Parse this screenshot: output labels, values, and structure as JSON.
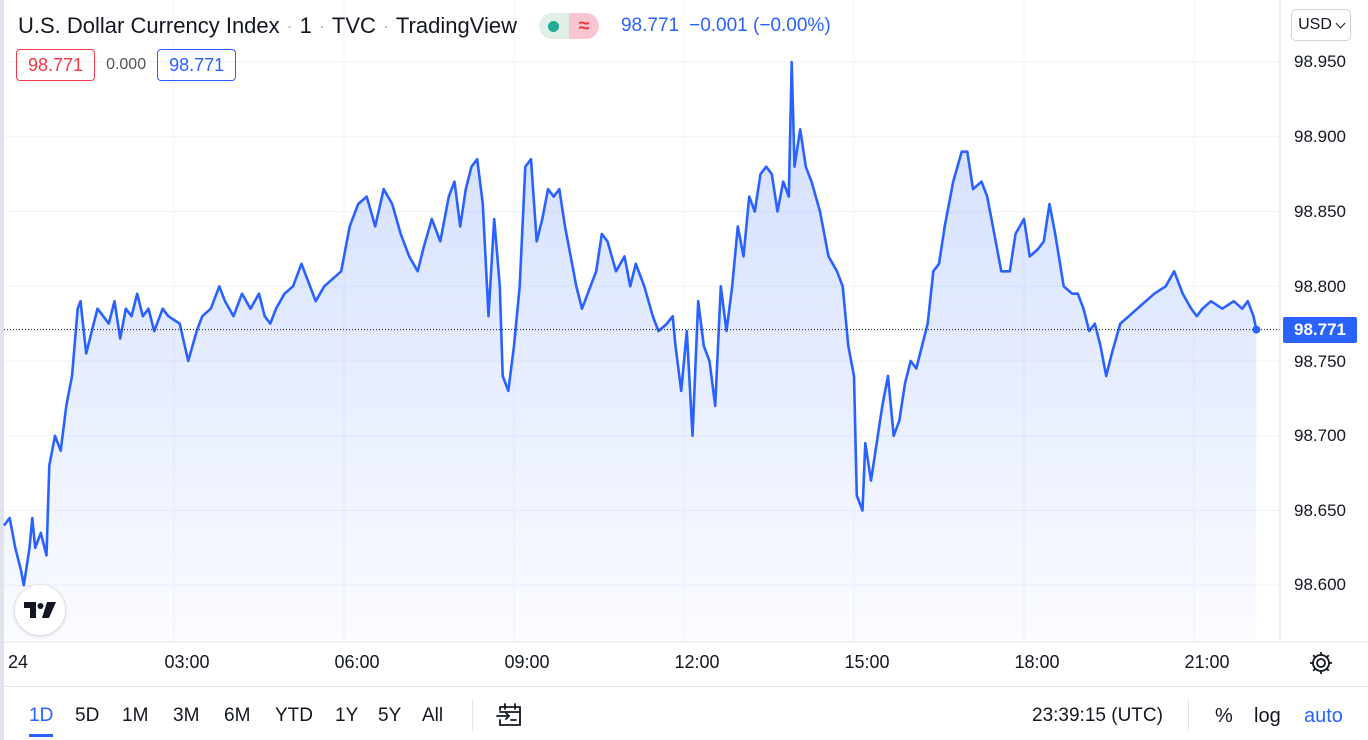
{
  "symbol": {
    "name": "U.S. Dollar Currency Index",
    "interval": "1",
    "exchange": "TVC",
    "source": "TradingView",
    "market_status_open_icon": "market-open-dot-icon",
    "market_status_delay_icon": "delayed-data-icon",
    "last_value": "98.771",
    "change": "−0.001 (−0.00%)"
  },
  "quote": {
    "sell": "98.771",
    "spread": "0.000",
    "buy": "98.771"
  },
  "currency_button": "USD",
  "price_axis": {
    "ticks": [
      "98.950",
      "98.900",
      "98.850",
      "98.800",
      "98.750",
      "98.700",
      "98.650",
      "98.600"
    ],
    "last_price_label": "98.771"
  },
  "time_axis": {
    "ticks": [
      "24",
      "03:00",
      "06:00",
      "09:00",
      "12:00",
      "15:00",
      "18:00",
      "21:00"
    ]
  },
  "toolbar": {
    "ranges": [
      "1D",
      "5D",
      "1M",
      "3M",
      "6M",
      "YTD",
      "1Y",
      "5Y",
      "All"
    ],
    "active_range": "1D",
    "clock": "23:39:15 (UTC)",
    "percent": "%",
    "log": "log",
    "auto": "auto"
  },
  "colors": {
    "line": "#2962ff",
    "accent": "#2962ff",
    "sell": "#f23645",
    "market_open": "#22ab94"
  },
  "chart_data": {
    "type": "area",
    "y_unit": "index points",
    "x_unit": "hours (UTC)",
    "ylim": [
      98.56,
      98.96
    ],
    "xlim": [
      0,
      25.2
    ],
    "grid": true,
    "last_price_line": 98.771,
    "points": [
      [
        0.0,
        98.64
      ],
      [
        0.1,
        98.645
      ],
      [
        0.2,
        98.625
      ],
      [
        0.3,
        98.61
      ],
      [
        0.35,
        98.6
      ],
      [
        0.45,
        98.625
      ],
      [
        0.5,
        98.645
      ],
      [
        0.55,
        98.625
      ],
      [
        0.65,
        98.635
      ],
      [
        0.75,
        98.62
      ],
      [
        0.8,
        98.68
      ],
      [
        0.9,
        98.7
      ],
      [
        1.0,
        98.69
      ],
      [
        1.1,
        98.72
      ],
      [
        1.2,
        98.74
      ],
      [
        1.3,
        98.785
      ],
      [
        1.35,
        98.79
      ],
      [
        1.45,
        98.755
      ],
      [
        1.55,
        98.77
      ],
      [
        1.65,
        98.785
      ],
      [
        1.75,
        98.78
      ],
      [
        1.85,
        98.775
      ],
      [
        1.95,
        98.79
      ],
      [
        2.05,
        98.765
      ],
      [
        2.15,
        98.785
      ],
      [
        2.25,
        98.78
      ],
      [
        2.35,
        98.795
      ],
      [
        2.45,
        98.78
      ],
      [
        2.55,
        98.785
      ],
      [
        2.65,
        98.77
      ],
      [
        2.8,
        98.785
      ],
      [
        2.9,
        98.78
      ],
      [
        3.1,
        98.775
      ],
      [
        3.25,
        98.75
      ],
      [
        3.4,
        98.77
      ],
      [
        3.5,
        98.78
      ],
      [
        3.65,
        98.785
      ],
      [
        3.8,
        98.8
      ],
      [
        3.9,
        98.79
      ],
      [
        4.05,
        98.78
      ],
      [
        4.2,
        98.795
      ],
      [
        4.35,
        98.785
      ],
      [
        4.5,
        98.795
      ],
      [
        4.6,
        98.78
      ],
      [
        4.7,
        98.775
      ],
      [
        4.8,
        98.785
      ],
      [
        4.95,
        98.795
      ],
      [
        5.1,
        98.8
      ],
      [
        5.25,
        98.815
      ],
      [
        5.35,
        98.805
      ],
      [
        5.5,
        98.79
      ],
      [
        5.65,
        98.8
      ],
      [
        5.8,
        98.805
      ],
      [
        5.95,
        98.81
      ],
      [
        6.1,
        98.84
      ],
      [
        6.25,
        98.855
      ],
      [
        6.4,
        98.86
      ],
      [
        6.55,
        98.84
      ],
      [
        6.7,
        98.865
      ],
      [
        6.85,
        98.855
      ],
      [
        7.0,
        98.835
      ],
      [
        7.15,
        98.82
      ],
      [
        7.3,
        98.81
      ],
      [
        7.4,
        98.825
      ],
      [
        7.55,
        98.845
      ],
      [
        7.7,
        98.83
      ],
      [
        7.85,
        98.86
      ],
      [
        7.95,
        98.87
      ],
      [
        8.05,
        98.84
      ],
      [
        8.15,
        98.865
      ],
      [
        8.25,
        98.88
      ],
      [
        8.35,
        98.885
      ],
      [
        8.45,
        98.855
      ],
      [
        8.55,
        98.78
      ],
      [
        8.65,
        98.845
      ],
      [
        8.75,
        98.8
      ],
      [
        8.8,
        98.74
      ],
      [
        8.9,
        98.73
      ],
      [
        9.0,
        98.76
      ],
      [
        9.1,
        98.8
      ],
      [
        9.2,
        98.88
      ],
      [
        9.3,
        98.885
      ],
      [
        9.4,
        98.83
      ],
      [
        9.5,
        98.845
      ],
      [
        9.6,
        98.865
      ],
      [
        9.7,
        98.86
      ],
      [
        9.8,
        98.865
      ],
      [
        9.9,
        98.84
      ],
      [
        10.0,
        98.82
      ],
      [
        10.1,
        98.8
      ],
      [
        10.2,
        98.785
      ],
      [
        10.3,
        98.795
      ],
      [
        10.45,
        98.81
      ],
      [
        10.55,
        98.835
      ],
      [
        10.65,
        98.83
      ],
      [
        10.8,
        98.81
      ],
      [
        10.95,
        98.82
      ],
      [
        11.05,
        98.8
      ],
      [
        11.15,
        98.815
      ],
      [
        11.3,
        98.8
      ],
      [
        11.45,
        98.78
      ],
      [
        11.55,
        98.77
      ],
      [
        11.7,
        98.775
      ],
      [
        11.8,
        98.78
      ],
      [
        11.85,
        98.76
      ],
      [
        11.95,
        98.73
      ],
      [
        12.05,
        98.77
      ],
      [
        12.15,
        98.7
      ],
      [
        12.25,
        98.79
      ],
      [
        12.35,
        98.76
      ],
      [
        12.45,
        98.75
      ],
      [
        12.55,
        98.72
      ],
      [
        12.65,
        98.8
      ],
      [
        12.75,
        98.77
      ],
      [
        12.85,
        98.8
      ],
      [
        12.95,
        98.84
      ],
      [
        13.05,
        98.82
      ],
      [
        13.15,
        98.86
      ],
      [
        13.25,
        98.85
      ],
      [
        13.35,
        98.875
      ],
      [
        13.45,
        98.88
      ],
      [
        13.55,
        98.875
      ],
      [
        13.65,
        98.85
      ],
      [
        13.75,
        98.87
      ],
      [
        13.85,
        98.86
      ],
      [
        13.9,
        98.95
      ],
      [
        13.95,
        98.88
      ],
      [
        14.05,
        98.905
      ],
      [
        14.15,
        98.88
      ],
      [
        14.25,
        98.87
      ],
      [
        14.4,
        98.85
      ],
      [
        14.55,
        98.82
      ],
      [
        14.7,
        98.81
      ],
      [
        14.8,
        98.8
      ],
      [
        14.9,
        98.76
      ],
      [
        15.0,
        98.74
      ],
      [
        15.05,
        98.66
      ],
      [
        15.15,
        98.65
      ],
      [
        15.2,
        98.695
      ],
      [
        15.3,
        98.67
      ],
      [
        15.4,
        98.695
      ],
      [
        15.5,
        98.72
      ],
      [
        15.6,
        98.74
      ],
      [
        15.7,
        98.7
      ],
      [
        15.8,
        98.71
      ],
      [
        15.9,
        98.735
      ],
      [
        16.0,
        98.75
      ],
      [
        16.1,
        98.745
      ],
      [
        16.2,
        98.76
      ],
      [
        16.3,
        98.775
      ],
      [
        16.4,
        98.81
      ],
      [
        16.5,
        98.815
      ],
      [
        16.6,
        98.84
      ],
      [
        16.75,
        98.87
      ],
      [
        16.9,
        98.89
      ],
      [
        17.0,
        98.89
      ],
      [
        17.1,
        98.865
      ],
      [
        17.25,
        98.87
      ],
      [
        17.35,
        98.86
      ],
      [
        17.5,
        98.83
      ],
      [
        17.6,
        98.81
      ],
      [
        17.75,
        98.81
      ],
      [
        17.85,
        98.835
      ],
      [
        18.0,
        98.845
      ],
      [
        18.1,
        98.82
      ],
      [
        18.25,
        98.825
      ],
      [
        18.35,
        98.83
      ],
      [
        18.45,
        98.855
      ],
      [
        18.55,
        98.835
      ],
      [
        18.7,
        98.8
      ],
      [
        18.85,
        98.795
      ],
      [
        18.95,
        98.795
      ],
      [
        19.05,
        98.785
      ],
      [
        19.15,
        98.77
      ],
      [
        19.25,
        98.775
      ],
      [
        19.35,
        98.76
      ],
      [
        19.45,
        98.74
      ],
      [
        19.55,
        98.755
      ],
      [
        19.7,
        98.775
      ],
      [
        19.85,
        98.78
      ],
      [
        20.0,
        98.785
      ],
      [
        20.15,
        98.79
      ],
      [
        20.3,
        98.795
      ],
      [
        20.5,
        98.8
      ],
      [
        20.65,
        98.81
      ],
      [
        20.8,
        98.795
      ],
      [
        20.95,
        98.785
      ],
      [
        21.05,
        98.78
      ],
      [
        21.15,
        98.785
      ],
      [
        21.3,
        98.79
      ],
      [
        21.5,
        98.785
      ],
      [
        21.7,
        98.79
      ],
      [
        21.85,
        98.785
      ],
      [
        21.95,
        98.79
      ],
      [
        22.05,
        98.78
      ],
      [
        22.1,
        98.771
      ]
    ]
  }
}
